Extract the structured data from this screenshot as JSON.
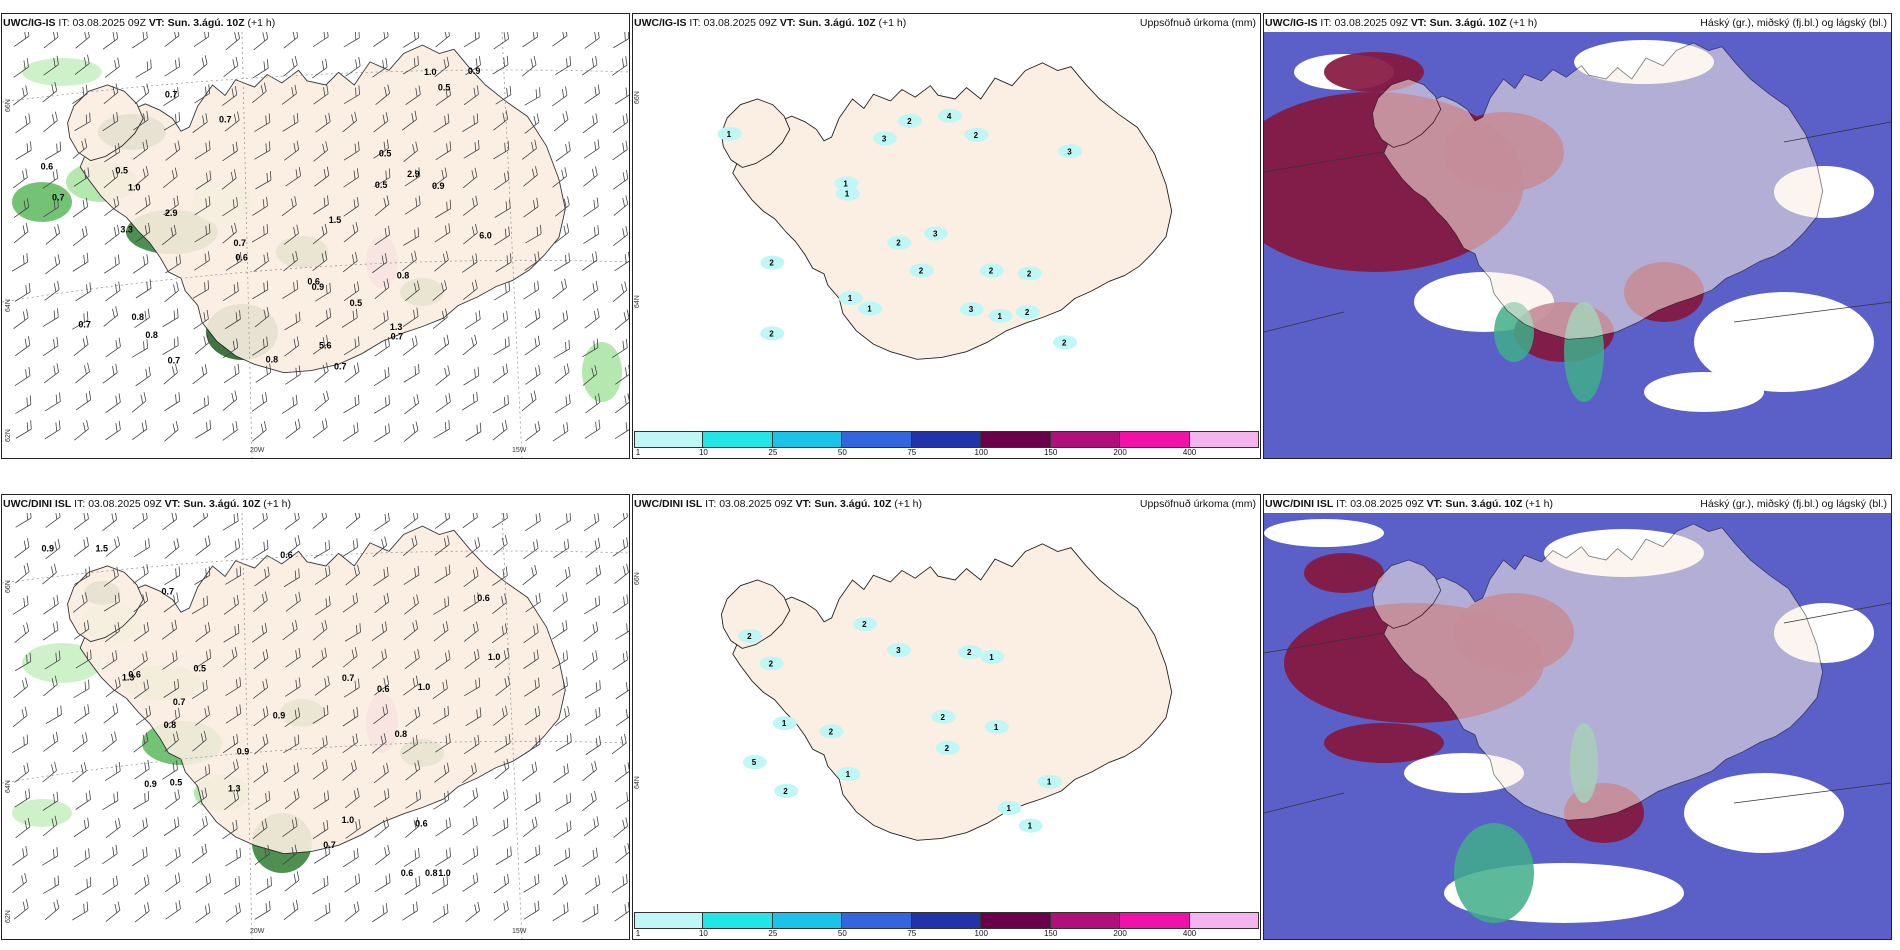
{
  "panels": [
    {
      "model": "UWC/IG-IS",
      "it_label": "IT:",
      "it": "03.08.2025 09Z",
      "vt_label": "VT:",
      "vt": "Sun. 3.ágú. 10Z",
      "lead": "(+1 h)",
      "right_title": ""
    },
    {
      "model": "UWC/IG-IS",
      "it_label": "IT:",
      "it": "03.08.2025 09Z",
      "vt_label": "VT:",
      "vt": "Sun. 3.ágú. 10Z",
      "lead": "(+1 h)",
      "right_title": "Uppsöfnuð úrkoma (mm)"
    },
    {
      "model": "UWC/IG-IS",
      "it_label": "IT:",
      "it": "03.08.2025 09Z",
      "vt_label": "VT:",
      "vt": "Sun. 3.ágú. 10Z",
      "lead": "(+1 h)",
      "right_title": "Háský (gr.), miðský (fj.bl.) og lágský (bl.)"
    },
    {
      "model": "UWC/DINI ISL",
      "it_label": "IT:",
      "it": "03.08.2025 09Z",
      "vt_label": "VT:",
      "vt": "Sun. 3.ágú. 10Z",
      "lead": "(+1 h)",
      "right_title": ""
    },
    {
      "model": "UWC/DINI ISL",
      "it_label": "IT:",
      "it": "03.08.2025 09Z",
      "vt_label": "VT:",
      "vt": "Sun. 3.ágú. 10Z",
      "lead": "(+1 h)",
      "right_title": "Uppsöfnuð úrkoma (mm)"
    },
    {
      "model": "UWC/DINI ISL",
      "it_label": "IT:",
      "it": "03.08.2025 09Z",
      "vt_label": "VT:",
      "vt": "Sun. 3.ágú. 10Z",
      "lead": "(+1 h)",
      "right_title": "Háský (gr.), miðský (fj.bl.) og lágský (bl.)"
    }
  ],
  "axes": {
    "lon1": "20W",
    "lon2": "15W",
    "lat1": "66N",
    "lat2": "64N",
    "lat3": "62N"
  },
  "colorbar": {
    "labels": [
      "1",
      "10",
      "25",
      "50",
      "75",
      "100",
      "150",
      "200",
      "400"
    ],
    "colors": [
      "#bff7f7",
      "#22e5e5",
      "#1bc3e8",
      "#3366dd",
      "#2233aa",
      "#6a004a",
      "#b0107a",
      "#f011a8",
      "#f6b4ef"
    ]
  },
  "land_color": "#fbeee2",
  "precip_values_top": [
    "0.7",
    "0.7",
    "0.8",
    "0.5",
    "2.9",
    "5.6",
    "6.0",
    "2.9",
    "0.6",
    "0.8",
    "0.7",
    "0.6",
    "0.7",
    "0.6",
    "0.5",
    "1.0",
    "0.7",
    "0.5",
    "0.8",
    "0.9",
    "1.3",
    "0.9",
    "0.7",
    "0.7",
    "1.5",
    "0.5",
    "3.3",
    "1.0",
    "0.8",
    "0.7",
    "0.5",
    "0.9"
  ],
  "precip_values_bottom": [
    "0.9",
    "1.3",
    "1.5",
    "0.8",
    "1.0",
    "0.7",
    "1.3",
    "0.8",
    "0.5",
    "0.6",
    "1.0",
    "0.6",
    "0.9",
    "0.6",
    "0.7",
    "1.0",
    "0.9",
    "1.0",
    "0.6",
    "0.5",
    "0.8",
    "0.6",
    "0.7",
    "0.9",
    "0.6",
    "0.7"
  ],
  "accum_values_top": [
    "2",
    "2",
    "3",
    "2",
    "3",
    "4",
    "2",
    "2",
    "1",
    "1",
    "2",
    "1",
    "1",
    "2",
    "3",
    "1",
    "2",
    "2",
    "2",
    "3",
    "1"
  ],
  "accum_values_bottom": [
    "1",
    "1",
    "2",
    "2",
    "1",
    "2",
    "2",
    "2",
    "1",
    "3",
    "2",
    "1",
    "1",
    "2",
    "2",
    "5",
    "1"
  ]
}
